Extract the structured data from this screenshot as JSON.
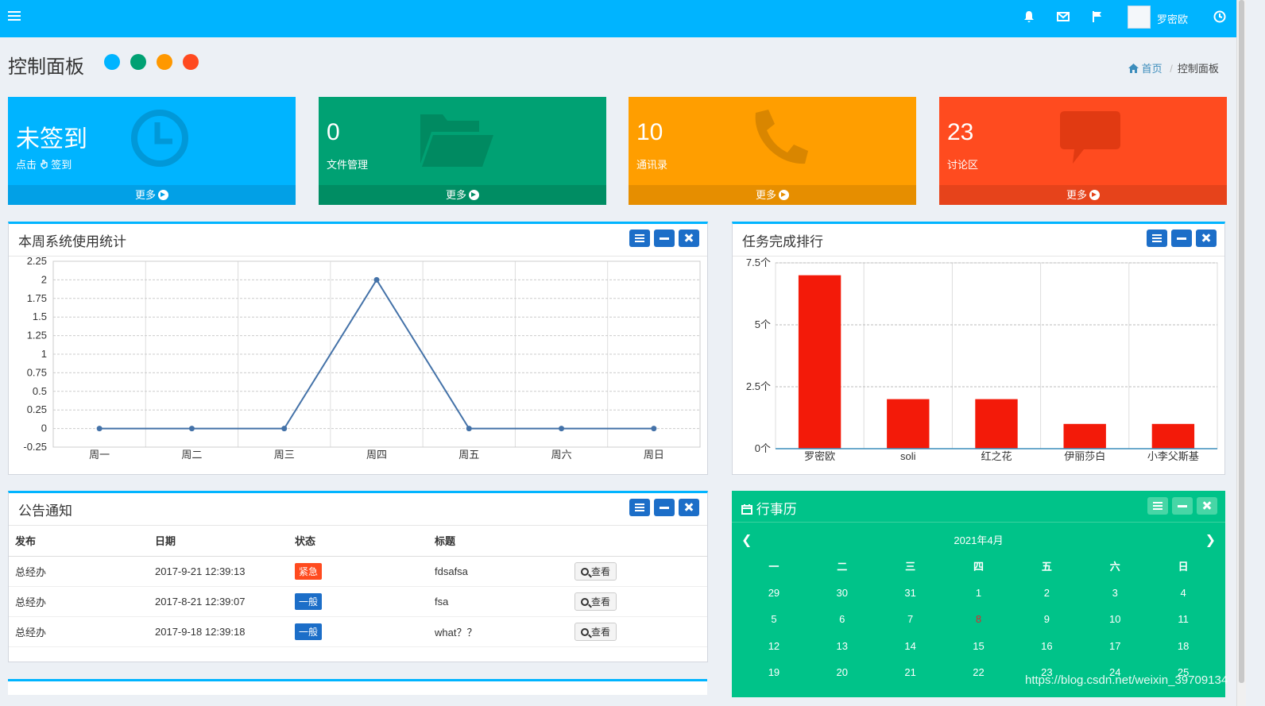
{
  "topbar": {
    "user_name": "罗密欧",
    "icons": [
      "bell-icon",
      "envelope-icon",
      "flag-icon",
      "clock-icon"
    ],
    "color": "#00b4ff"
  },
  "header": {
    "title": "控制面板",
    "skin_colors": [
      "#00b4ff",
      "#00a173",
      "#ff9800",
      "#ff4a20"
    ],
    "breadcrumb": {
      "home": "首页",
      "current": "控制面板"
    }
  },
  "stats": [
    {
      "value": "未签到",
      "label_pre": "点击",
      "label_post": "签到",
      "icon": "clock-icon",
      "more": "更多",
      "color": "#00b4ff",
      "footer_color": "#02a0e6"
    },
    {
      "value": "0",
      "label": "文件管理",
      "icon": "folder-open-icon",
      "more": "更多",
      "color": "#00a173",
      "footer_color": "#008d63"
    },
    {
      "value": "10",
      "label": "通讯录",
      "icon": "phone-icon",
      "more": "更多",
      "color": "#ff9e00",
      "footer_color": "#e68e00"
    },
    {
      "value": "23",
      "label": "讨论区",
      "icon": "comment-icon",
      "more": "更多",
      "color": "#ff4b1f",
      "footer_color": "#e6431b"
    }
  ],
  "usage_panel": {
    "title": "本周系统使用统计"
  },
  "ranking_panel": {
    "title": "任务完成排行"
  },
  "notice_panel": {
    "title": "公告通知",
    "columns": [
      "发布",
      "日期",
      "状态",
      "标题"
    ],
    "rows": [
      {
        "publisher": "总经办",
        "date": "2017-9-21 12:39:13",
        "status": "紧急",
        "status_color": "#ff4b1f",
        "title": "fdsafsa",
        "action": "查看"
      },
      {
        "publisher": "总经办",
        "date": "2017-8-21 12:39:07",
        "status": "一般",
        "status_color": "#1c6ec8",
        "title": "fsa",
        "action": "查看"
      },
      {
        "publisher": "总经办",
        "date": "2017-9-18 12:39:18",
        "status": "一般",
        "status_color": "#1c6ec8",
        "title": "what？？",
        "action": "查看"
      }
    ]
  },
  "calendar": {
    "title": "行事历",
    "month": "2021年4月",
    "weekdays": [
      "一",
      "二",
      "三",
      "四",
      "五",
      "六",
      "日"
    ],
    "weeks": [
      [
        "29",
        "30",
        "31",
        "1",
        "2",
        "3",
        "4"
      ],
      [
        "5",
        "6",
        "7",
        "8",
        "9",
        "10",
        "11"
      ],
      [
        "12",
        "13",
        "14",
        "15",
        "16",
        "17",
        "18"
      ],
      [
        "19",
        "20",
        "21",
        "22",
        "23",
        "24",
        "25"
      ]
    ],
    "today": "8"
  },
  "watermark": "https://blog.csdn.net/weixin_39709134",
  "chart_data": [
    {
      "type": "line",
      "categories": [
        "周一",
        "周二",
        "周三",
        "周四",
        "周五",
        "周六",
        "周日"
      ],
      "series": [
        {
          "values": [
            0,
            0,
            0,
            2,
            0,
            0,
            0
          ]
        }
      ],
      "ylim": [
        -0.25,
        2.25
      ],
      "yticks": [
        "-0.25",
        "0",
        "0.25",
        "0.5",
        "0.75",
        "1",
        "1.25",
        "1.5",
        "1.75",
        "2",
        "2.25"
      ],
      "grid": true,
      "color": "#4472a8"
    },
    {
      "type": "bar",
      "categories": [
        "罗密欧",
        "soli",
        "红之花",
        "伊丽莎白",
        "小李父斯基"
      ],
      "values": [
        7,
        2,
        2,
        1,
        1
      ],
      "ylim": [
        0,
        7.5
      ],
      "yticks": [
        "0个",
        "2.5个",
        "5个",
        "7.5个"
      ],
      "grid": true,
      "color": "#f31a09"
    }
  ]
}
